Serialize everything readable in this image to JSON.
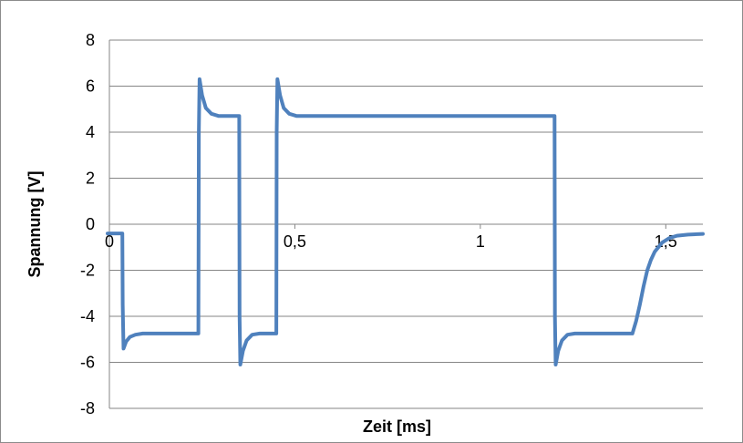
{
  "chart_data": {
    "type": "line",
    "title": "",
    "xlabel": "Zeit [ms]",
    "ylabel": "Spannung [V]",
    "xlim": [
      0,
      1.6
    ],
    "ylim": [
      -8,
      8
    ],
    "x_ticks": [
      {
        "value": 0,
        "label": "0"
      },
      {
        "value": 0.5,
        "label": "0,5"
      },
      {
        "value": 1,
        "label": "1"
      },
      {
        "value": 1.5,
        "label": "1,5"
      }
    ],
    "y_ticks": [
      {
        "value": 8,
        "label": "8"
      },
      {
        "value": 6,
        "label": "6"
      },
      {
        "value": 4,
        "label": "4"
      },
      {
        "value": 2,
        "label": "2"
      },
      {
        "value": 0,
        "label": "0"
      },
      {
        "value": -2,
        "label": "-2"
      },
      {
        "value": -4,
        "label": "-4"
      },
      {
        "value": -6,
        "label": "-6"
      },
      {
        "value": -8,
        "label": "-8"
      }
    ],
    "grid": "horizontal",
    "legend": "none",
    "series": [
      {
        "color": "#4f81bd",
        "x": [
          -0.005,
          0.035,
          0.036,
          0.038,
          0.045,
          0.055,
          0.07,
          0.09,
          0.13,
          0.24,
          0.241,
          0.243,
          0.25,
          0.26,
          0.275,
          0.295,
          0.35,
          0.351,
          0.353,
          0.36,
          0.37,
          0.385,
          0.405,
          0.45,
          0.451,
          0.453,
          0.46,
          0.47,
          0.485,
          0.505,
          1.2,
          1.201,
          1.203,
          1.21,
          1.22,
          1.235,
          1.255,
          1.41,
          1.42,
          1.43,
          1.44,
          1.45,
          1.46,
          1.47,
          1.49,
          1.51,
          1.53,
          1.56,
          1.6
        ],
        "y": [
          -0.4,
          -0.4,
          -3.5,
          -5.4,
          -5.1,
          -4.9,
          -4.8,
          -4.75,
          -4.75,
          -4.75,
          4.0,
          6.3,
          5.6,
          5.05,
          4.8,
          4.7,
          4.7,
          -4.0,
          -6.1,
          -5.5,
          -5.05,
          -4.8,
          -4.75,
          -4.75,
          4.0,
          6.3,
          5.6,
          5.05,
          4.8,
          4.7,
          4.7,
          -4.0,
          -6.1,
          -5.5,
          -5.05,
          -4.8,
          -4.75,
          -4.75,
          -4.2,
          -3.5,
          -2.7,
          -2.0,
          -1.55,
          -1.2,
          -0.8,
          -0.6,
          -0.5,
          -0.45,
          -0.42
        ]
      }
    ]
  }
}
